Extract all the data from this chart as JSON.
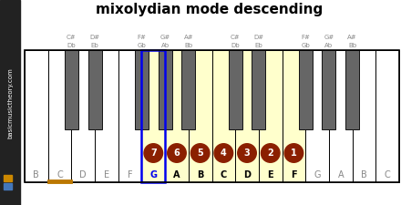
{
  "title": "mixolydian mode descending",
  "white_notes": [
    "B",
    "C",
    "D",
    "E",
    "F",
    "G",
    "A",
    "B",
    "C",
    "D",
    "E",
    "F",
    "G",
    "A",
    "B",
    "C"
  ],
  "black_note_labels": [
    [
      "C#",
      "Db"
    ],
    [
      "D#",
      "Eb"
    ],
    [
      "F#",
      "Gb"
    ],
    [
      "G#",
      "Ab"
    ],
    [
      "A#",
      "Bb"
    ],
    [
      "C#",
      "Db"
    ],
    [
      "D#",
      "Eb"
    ],
    [
      "F#",
      "Gb"
    ],
    [
      "G#",
      "Ab"
    ],
    [
      "A#",
      "Bb"
    ]
  ],
  "highlighted_white_indices": [
    5,
    6,
    7,
    8,
    9,
    10,
    11
  ],
  "scale_numbers": [
    7,
    6,
    5,
    4,
    3,
    2,
    1
  ],
  "special_blue_index": 5,
  "special_orange_index": 1,
  "highlight_fill": "#ffffcc",
  "circle_color": "#8b2000",
  "circle_text_color": "#ffffff",
  "blue_border_color": "#0000ee",
  "orange_underline_color": "#bb7700",
  "sidebar_bg": "#222222",
  "sidebar_text_color": "#ffffff",
  "black_key_color": "#666666",
  "white_key_border": "#000000",
  "label_text_color": "#999999",
  "background_color": "#ffffff"
}
